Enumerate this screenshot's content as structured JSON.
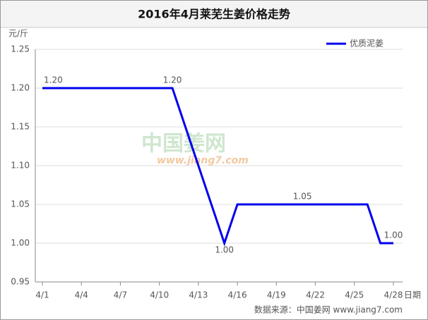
{
  "chart_data": {
    "type": "line",
    "title": "2016年4月莱芜生姜价格走势",
    "y_unit": "元/斤",
    "x_label": "日期",
    "source": "数据来源：中国姜网 www.jiang7.com",
    "watermark": [
      "中国姜网",
      "www.jiang7.com"
    ],
    "x": [
      "4/1",
      "4/11",
      "4/15",
      "4/16",
      "4/21",
      "4/26",
      "4/27",
      "4/28"
    ],
    "series": [
      {
        "name": "优质泥姜",
        "color": "#0000ee",
        "values": [
          1.2,
          1.2,
          1,
          1.05,
          1.05,
          1.05,
          1,
          1
        ],
        "value_labels": [
          "1.20",
          "1.20",
          "1.00",
          null,
          "1.05",
          null,
          null,
          "1.00"
        ]
      }
    ],
    "xticks": [
      "4/1",
      "4/4",
      "4/7",
      "4/10",
      "4/13",
      "4/16",
      "4/19",
      "4/22",
      "4/25",
      "4/28"
    ],
    "ylim": [
      0.95,
      1.25
    ],
    "yticks": [
      0.95,
      {
        "value": 1,
        "label": "1.00"
      },
      1.05,
      {
        "value": 1.1,
        "label": "1.10"
      },
      1.15,
      {
        "value": 1.2,
        "label": "1.20"
      },
      1.25
    ],
    "grid": true,
    "legend": "top-right"
  }
}
